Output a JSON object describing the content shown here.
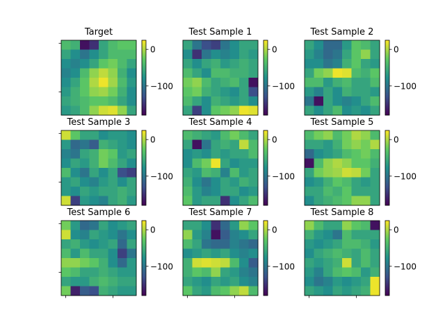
{
  "chart_data": {
    "type": "heatmap",
    "colormap": [
      "#440154",
      "#3b528b",
      "#21918c",
      "#5ec962",
      "#fde725"
    ],
    "vmin": -180,
    "vmax": 25,
    "colorbar_ticks": [
      {
        "value": 0,
        "label": "0"
      },
      {
        "value": -100,
        "label": "−100"
      }
    ],
    "panels": [
      {
        "title": "Target",
        "values": [
          [
            -40,
            -50,
            -170,
            -150,
            -60,
            -40,
            -30,
            -30
          ],
          [
            -60,
            -80,
            -100,
            -80,
            -60,
            -40,
            -40,
            -40
          ],
          [
            -80,
            -90,
            -80,
            -60,
            -30,
            -20,
            -40,
            -60
          ],
          [
            -90,
            -80,
            -40,
            -10,
            5,
            -10,
            -50,
            -80
          ],
          [
            -80,
            -60,
            -30,
            0,
            20,
            -5,
            -40,
            -70
          ],
          [
            -70,
            -50,
            -30,
            -10,
            -5,
            -20,
            -50,
            -80
          ],
          [
            -60,
            -50,
            -40,
            -30,
            -30,
            -40,
            -60,
            -80
          ],
          [
            -70,
            -60,
            -40,
            -10,
            10,
            15,
            -10,
            -60
          ]
        ]
      },
      {
        "title": "Test Sample 1",
        "values": [
          [
            -60,
            -100,
            -130,
            -140,
            -100,
            -80,
            -60,
            -60
          ],
          [
            -80,
            -150,
            -100,
            -80,
            -90,
            -80,
            -60,
            -70
          ],
          [
            -60,
            -80,
            -60,
            -50,
            -70,
            -60,
            -50,
            -60
          ],
          [
            -40,
            -60,
            -80,
            -40,
            -40,
            -50,
            -50,
            -60
          ],
          [
            -20,
            -10,
            -40,
            -60,
            -50,
            -40,
            -60,
            -170
          ],
          [
            -30,
            -20,
            -50,
            -60,
            -70,
            -80,
            -60,
            -130
          ],
          [
            -40,
            -60,
            -80,
            -50,
            -60,
            -70,
            -60,
            -80
          ],
          [
            -60,
            -140,
            -80,
            -30,
            -20,
            -10,
            20,
            15
          ]
        ]
      },
      {
        "title": "Test Sample 2",
        "values": [
          [
            -60,
            -80,
            -110,
            -110,
            -70,
            -30,
            -40,
            -60
          ],
          [
            -70,
            -90,
            -110,
            -100,
            -60,
            -30,
            -10,
            -60
          ],
          [
            -80,
            -80,
            -100,
            -90,
            -50,
            -30,
            -60,
            -70
          ],
          [
            -60,
            -20,
            -10,
            20,
            15,
            -40,
            -50,
            -30
          ],
          [
            -40,
            -40,
            -70,
            -50,
            -40,
            -60,
            -60,
            -40
          ],
          [
            -70,
            -90,
            -60,
            -80,
            -50,
            -60,
            -60,
            -70
          ],
          [
            -100,
            -170,
            -60,
            -80,
            -90,
            -80,
            -60,
            -40
          ],
          [
            -60,
            -80,
            -60,
            -40,
            -80,
            -70,
            -80,
            -60
          ]
        ]
      },
      {
        "title": "Test Sample 3",
        "values": [
          [
            10,
            -30,
            -60,
            -60,
            -80,
            -70,
            -70,
            -80
          ],
          [
            -70,
            -110,
            -100,
            -120,
            -50,
            -60,
            -70,
            -80
          ],
          [
            -90,
            -100,
            -60,
            -50,
            -20,
            -30,
            -70,
            -60
          ],
          [
            -80,
            -60,
            -70,
            -50,
            -20,
            -40,
            -60,
            -80
          ],
          [
            -40,
            -80,
            -100,
            -60,
            -80,
            -60,
            -130,
            -140
          ],
          [
            -70,
            -60,
            -80,
            -90,
            -70,
            -60,
            -80,
            -60
          ],
          [
            -70,
            -80,
            -60,
            -70,
            -60,
            -60,
            -50,
            -60
          ],
          [
            10,
            -140,
            -70,
            -80,
            -90,
            -60,
            -50,
            -70
          ]
        ]
      },
      {
        "title": "Test Sample 4",
        "values": [
          [
            -40,
            -50,
            -60,
            -70,
            -40,
            -20,
            -40,
            -60
          ],
          [
            -60,
            -170,
            -100,
            -60,
            -50,
            -60,
            5,
            -40
          ],
          [
            -80,
            -70,
            -80,
            -60,
            -70,
            -60,
            -60,
            -40
          ],
          [
            -80,
            -40,
            -20,
            20,
            -60,
            -80,
            -70,
            -70
          ],
          [
            -60,
            -70,
            -40,
            -50,
            -90,
            -40,
            -70,
            -60
          ],
          [
            -50,
            -80,
            -100,
            -80,
            -60,
            -70,
            -50,
            -60
          ],
          [
            -40,
            -70,
            -90,
            -80,
            -60,
            -60,
            -80,
            -70
          ],
          [
            -30,
            -70,
            -60,
            -60,
            -150,
            -80,
            -60,
            -40
          ]
        ]
      },
      {
        "title": "Test Sample 5",
        "values": [
          [
            -40,
            -20,
            -10,
            -40,
            -20,
            0,
            -10,
            -40
          ],
          [
            -60,
            -60,
            -70,
            -50,
            -20,
            -10,
            -20,
            0
          ],
          [
            -110,
            -80,
            -70,
            -60,
            -40,
            -30,
            -20,
            -40
          ],
          [
            -170,
            -40,
            -10,
            0,
            -10,
            -30,
            -30,
            -50
          ],
          [
            -60,
            -20,
            -10,
            -5,
            10,
            5,
            -20,
            -60
          ],
          [
            -80,
            -70,
            -50,
            -30,
            -40,
            -60,
            -70,
            -60
          ],
          [
            -60,
            -60,
            -40,
            -50,
            -30,
            -60,
            -60,
            -60
          ],
          [
            -80,
            -60,
            -50,
            -40,
            -30,
            -10,
            -10,
            -60
          ]
        ]
      },
      {
        "title": "Test Sample 6",
        "values": [
          [
            -20,
            -70,
            -110,
            -100,
            -60,
            -80,
            -70,
            -60
          ],
          [
            10,
            -80,
            -90,
            -60,
            -70,
            -80,
            -100,
            -80
          ],
          [
            -60,
            -50,
            -70,
            -80,
            -70,
            -60,
            -110,
            -60
          ],
          [
            -40,
            -70,
            -40,
            -60,
            -60,
            -80,
            -140,
            -100
          ],
          [
            -10,
            -10,
            -20,
            -30,
            -50,
            -80,
            -110,
            -70
          ],
          [
            -30,
            -40,
            -60,
            -60,
            -50,
            -60,
            -70,
            -70
          ],
          [
            -60,
            -70,
            -70,
            -50,
            -40,
            -50,
            -60,
            -60
          ],
          [
            -20,
            -160,
            -120,
            -130,
            -50,
            -60,
            -70,
            -70
          ]
        ]
      },
      {
        "title": "Test Sample 7",
        "values": [
          [
            -60,
            -60,
            -80,
            -150,
            -110,
            -70,
            -10,
            -30
          ],
          [
            -10,
            -70,
            -90,
            -170,
            -120,
            -90,
            -80,
            -60
          ],
          [
            -40,
            -60,
            -100,
            -110,
            -110,
            -90,
            -100,
            -110
          ],
          [
            -80,
            -70,
            -60,
            -70,
            -60,
            -80,
            -90,
            -80
          ],
          [
            -50,
            10,
            15,
            10,
            5,
            -40,
            -80,
            -120
          ],
          [
            -50,
            -30,
            -40,
            -10,
            -60,
            -70,
            -90,
            -100
          ],
          [
            -60,
            -70,
            -80,
            -60,
            -70,
            -60,
            -80,
            -90
          ],
          [
            -30,
            -60,
            -70,
            -40,
            -30,
            -10,
            5,
            -40
          ]
        ]
      },
      {
        "title": "Test Sample 8",
        "values": [
          [
            -10,
            -40,
            -60,
            -60,
            -10,
            -30,
            -40,
            -170
          ],
          [
            -50,
            -70,
            -80,
            -100,
            -40,
            -60,
            -60,
            -60
          ],
          [
            -70,
            -80,
            -70,
            -60,
            -40,
            -40,
            -50,
            -70
          ],
          [
            -80,
            -60,
            -50,
            -40,
            -50,
            -60,
            -40,
            -60
          ],
          [
            -60,
            -70,
            -60,
            -50,
            10,
            -60,
            -40,
            -60
          ],
          [
            -70,
            -90,
            -60,
            -40,
            -30,
            -40,
            -70,
            -50
          ],
          [
            -80,
            -100,
            -90,
            -70,
            -80,
            -70,
            -60,
            20
          ],
          [
            -60,
            -70,
            -80,
            -60,
            -70,
            -60,
            -50,
            20
          ]
        ]
      }
    ]
  }
}
